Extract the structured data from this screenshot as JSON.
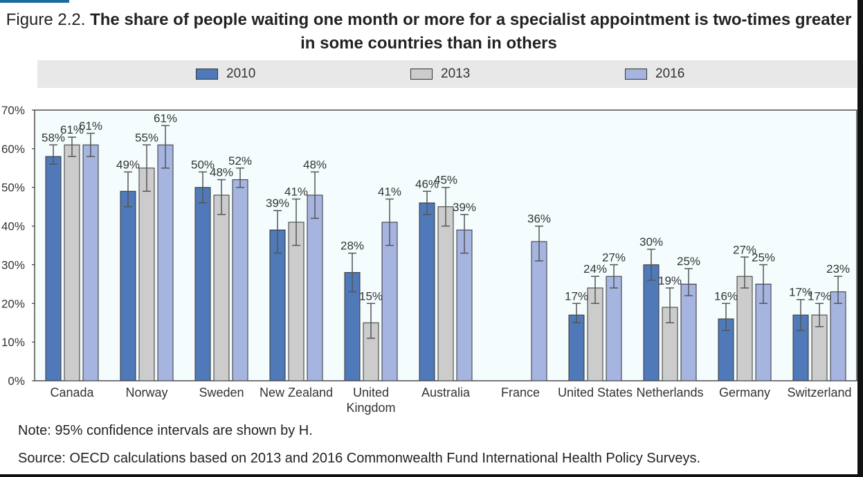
{
  "figure": {
    "prefix": "Figure 2.2.",
    "title_line1": "The share of people waiting one month or more for a specialist appointment is two-times greater",
    "title_line2": "in some countries than in others"
  },
  "legend": [
    {
      "label": "2010",
      "color": "#4f79b8"
    },
    {
      "label": "2013",
      "color": "#cccccc"
    },
    {
      "label": "2016",
      "color": "#a6b4e0"
    }
  ],
  "chart_data": {
    "type": "bar",
    "categories": [
      "Canada",
      "Norway",
      "Sweden",
      "New Zealand",
      "United Kingdom",
      "Australia",
      "France",
      "United States",
      "Netherlands",
      "Germany",
      "Switzerland"
    ],
    "series": [
      {
        "name": "2010",
        "color": "#4f79b8",
        "values": [
          58,
          49,
          50,
          39,
          28,
          46,
          null,
          17,
          30,
          16,
          17
        ],
        "ci": [
          [
            56,
            61
          ],
          [
            45,
            54
          ],
          [
            46,
            54
          ],
          [
            33,
            44
          ],
          [
            23,
            33
          ],
          [
            43,
            49
          ],
          null,
          [
            15,
            20
          ],
          [
            26,
            34
          ],
          [
            13,
            20
          ],
          [
            13,
            21
          ]
        ]
      },
      {
        "name": "2013",
        "color": "#cccccc",
        "values": [
          61,
          55,
          48,
          41,
          15,
          45,
          null,
          24,
          19,
          27,
          17
        ],
        "ci": [
          [
            58,
            63
          ],
          [
            49,
            61
          ],
          [
            43,
            52
          ],
          [
            35,
            47
          ],
          [
            11,
            20
          ],
          [
            40,
            50
          ],
          null,
          [
            20,
            27
          ],
          [
            15,
            24
          ],
          [
            24,
            32
          ],
          [
            14,
            20
          ]
        ]
      },
      {
        "name": "2016",
        "color": "#a6b4e0",
        "values": [
          61,
          61,
          52,
          48,
          41,
          39,
          36,
          27,
          25,
          25,
          23
        ],
        "ci": [
          [
            58,
            64
          ],
          [
            55,
            66
          ],
          [
            50,
            55
          ],
          [
            42,
            54
          ],
          [
            35,
            47
          ],
          [
            33,
            43
          ],
          [
            31,
            40
          ],
          [
            24,
            30
          ],
          [
            22,
            29
          ],
          [
            20,
            30
          ],
          [
            20,
            27
          ]
        ]
      }
    ],
    "data_labels": [
      [
        "58%",
        "49%",
        "50%",
        "39%",
        "28%",
        "46%",
        "",
        "17%",
        "30%",
        "16%",
        "17%"
      ],
      [
        "61%",
        "55%",
        "48%",
        "41%",
        "15%",
        "45%",
        "",
        "24%",
        "19%",
        "27%",
        "17%"
      ],
      [
        "61%",
        "61%",
        "52%",
        "48%",
        "41%",
        "39%",
        "36%",
        "27%",
        "25%",
        "25%",
        "23%"
      ]
    ],
    "yticks": [
      "0%",
      "10%",
      "20%",
      "30%",
      "40%",
      "50%",
      "60%",
      "70%"
    ],
    "ylim": [
      0,
      70
    ],
    "xlabel": "",
    "ylabel": "",
    "legend_position": "top",
    "grid": false
  },
  "note": "Note: 95% confidence intervals are shown by H.",
  "source": "Source: OECD calculations based on 2013 and 2016 Commonwealth Fund International Health Policy Surveys."
}
